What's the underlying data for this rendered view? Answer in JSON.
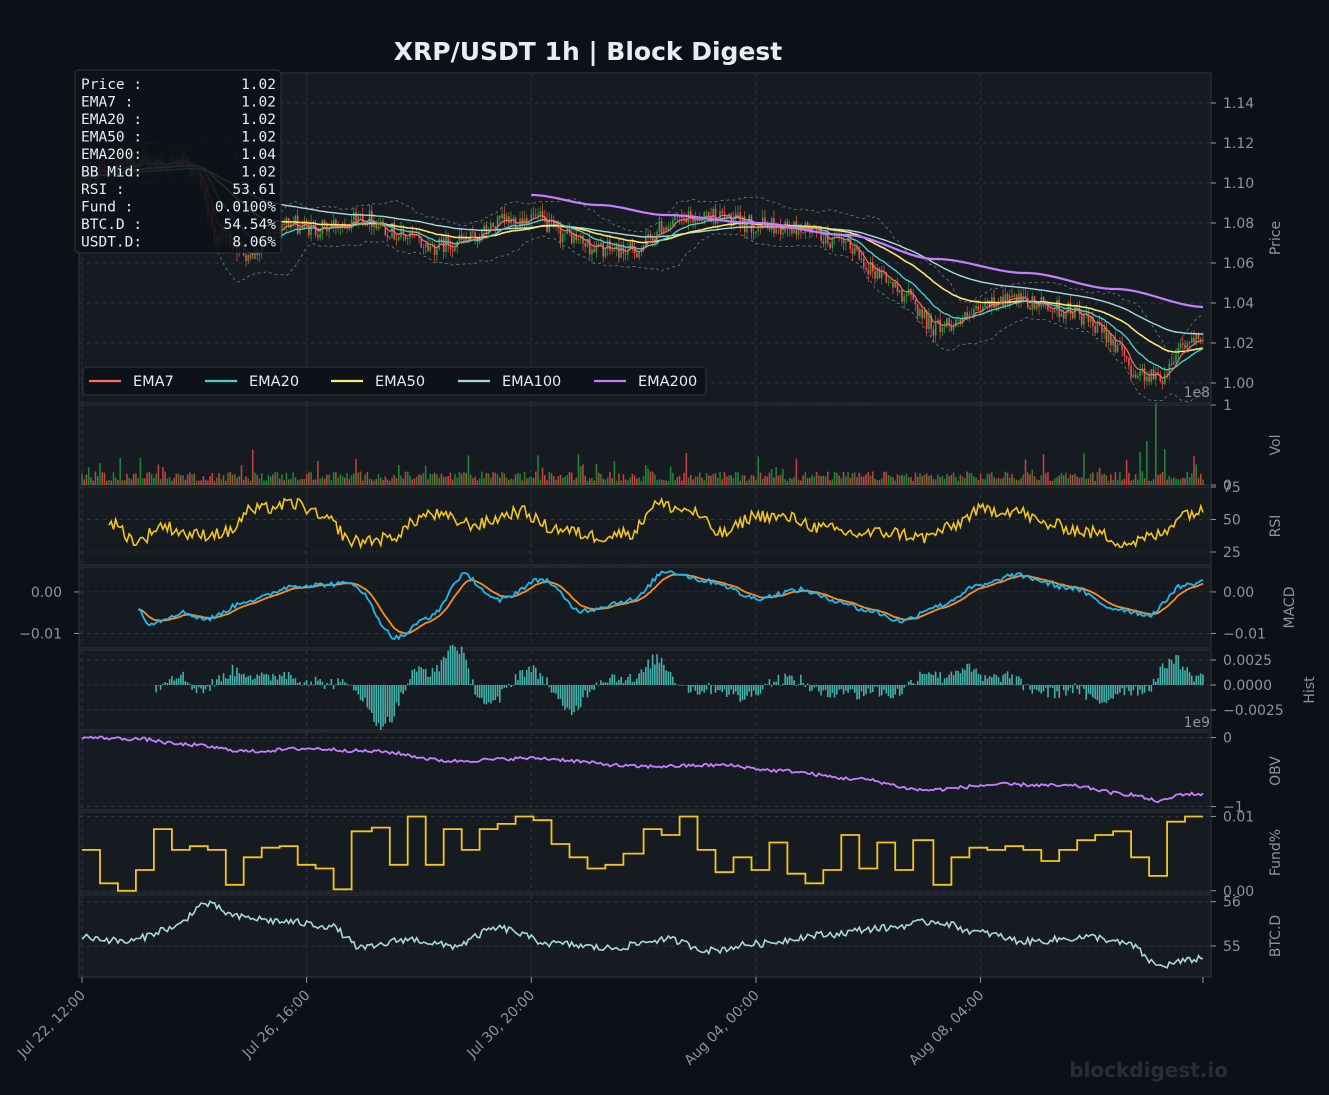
{
  "chart_data": {
    "type": "line",
    "title": "XRP/USDT  1h  |  Block Digest",
    "watermark": "blockdigest.io",
    "footer_brand": "blockdigest.io",
    "colors": {
      "background": "#0d1117",
      "panel": "#161b22",
      "grid": "#30363d",
      "text": "#e6edf3",
      "muted": "#8b949e",
      "up": "#26a641",
      "down": "#f85149",
      "ema7": "#ff6b6b",
      "ema20": "#4ecdc4",
      "ema50": "#ffe66d",
      "ema100": "#a8dadc",
      "ema200": "#c77dff",
      "rsi": "#f5c518",
      "macd": "#1eb8f0",
      "signal": "#ff8c1a",
      "hist": "#4ecdc4",
      "obv": "#c77dff",
      "funding": "#f5c518",
      "btcd": "#a8dadc"
    },
    "x_ticks": [
      "Jul 22, 12:00",
      "Jul 26, 16:00",
      "Jul 30, 20:00",
      "Aug 04, 00:00",
      "Aug 08, 04:00"
    ],
    "x_tick_positions": [
      0,
      100,
      200,
      300,
      400
    ],
    "n_bars": 500,
    "info_box": [
      {
        "label": "Price :",
        "value": "1.02"
      },
      {
        "label": "EMA7  :",
        "value": "1.02"
      },
      {
        "label": "EMA20 :",
        "value": "1.02"
      },
      {
        "label": "EMA50 :",
        "value": "1.02"
      },
      {
        "label": "EMA200:",
        "value": "1.04"
      },
      {
        "label": "BB Mid:",
        "value": "1.02"
      },
      {
        "label": "RSI   :",
        "value": "53.61"
      },
      {
        "label": "Fund  :",
        "value": "0.0100%"
      },
      {
        "label": "BTC.D :",
        "value": "54.54%"
      },
      {
        "label": "USDT.D:",
        "value": "8.06%"
      }
    ],
    "legend": [
      "EMA7",
      "EMA20",
      "EMA50",
      "EMA100",
      "EMA200"
    ],
    "panels": {
      "price": {
        "ylabel": "Price",
        "ylim": [
          0.99,
          1.155
        ],
        "ticks": [
          "1.00",
          "1.02",
          "1.04",
          "1.06",
          "1.08",
          "1.10",
          "1.12",
          "1.14"
        ],
        "anchors": [
          [
            0,
            1.1
          ],
          [
            15,
            1.11
          ],
          [
            45,
            1.11
          ],
          [
            50,
            1.104
          ],
          [
            60,
            1.074
          ],
          [
            75,
            1.065
          ],
          [
            90,
            1.08
          ],
          [
            105,
            1.077
          ],
          [
            125,
            1.083
          ],
          [
            145,
            1.073
          ],
          [
            155,
            1.068
          ],
          [
            170,
            1.071
          ],
          [
            190,
            1.081
          ],
          [
            200,
            1.083
          ],
          [
            215,
            1.074
          ],
          [
            230,
            1.067
          ],
          [
            245,
            1.066
          ],
          [
            262,
            1.08
          ],
          [
            280,
            1.084
          ],
          [
            300,
            1.079
          ],
          [
            320,
            1.077
          ],
          [
            340,
            1.069
          ],
          [
            355,
            1.055
          ],
          [
            365,
            1.045
          ],
          [
            380,
            1.028
          ],
          [
            390,
            1.031
          ],
          [
            410,
            1.042
          ],
          [
            425,
            1.039
          ],
          [
            440,
            1.036
          ],
          [
            455,
            1.025
          ],
          [
            470,
            1.005
          ],
          [
            480,
            1.003
          ],
          [
            490,
            1.02
          ],
          [
            500,
            1.02
          ]
        ],
        "ema200": [
          [
            200,
            1.094
          ],
          [
            230,
            1.089
          ],
          [
            260,
            1.084
          ],
          [
            300,
            1.08
          ],
          [
            340,
            1.074
          ],
          [
            380,
            1.062
          ],
          [
            420,
            1.055
          ],
          [
            460,
            1.047
          ],
          [
            500,
            1.038
          ]
        ]
      },
      "volume": {
        "ylabel": "Vol",
        "ylim": [
          0,
          1.0
        ],
        "ticks": [
          "0",
          "1"
        ],
        "offset": "1e8"
      },
      "rsi": {
        "ylabel": "RSI",
        "ylim": [
          15,
          75
        ],
        "ticks": [
          "25",
          "50",
          "75"
        ],
        "anchors": [
          [
            12,
            48
          ],
          [
            25,
            33
          ],
          [
            35,
            45
          ],
          [
            50,
            38
          ],
          [
            65,
            40
          ],
          [
            75,
            57
          ],
          [
            95,
            62
          ],
          [
            110,
            49
          ],
          [
            120,
            33
          ],
          [
            135,
            35
          ],
          [
            155,
            54
          ],
          [
            175,
            46
          ],
          [
            195,
            56
          ],
          [
            210,
            43
          ],
          [
            230,
            37
          ],
          [
            245,
            40
          ],
          [
            255,
            62
          ],
          [
            270,
            57
          ],
          [
            285,
            39
          ],
          [
            300,
            53
          ],
          [
            315,
            51
          ],
          [
            330,
            43
          ],
          [
            345,
            39
          ],
          [
            360,
            40
          ],
          [
            375,
            36
          ],
          [
            385,
            43
          ],
          [
            400,
            57
          ],
          [
            415,
            57
          ],
          [
            430,
            46
          ],
          [
            450,
            40
          ],
          [
            465,
            32
          ],
          [
            480,
            38
          ],
          [
            490,
            55
          ],
          [
            500,
            56
          ]
        ]
      },
      "macd": {
        "ylabel": "MACD",
        "ylim": [
          -0.0135,
          0.006
        ],
        "ticks_left": [
          "0.00",
          "−0.01"
        ],
        "ticks_right": [
          "0.00",
          "−0.01"
        ],
        "anchors": [
          [
            25,
            -0.004
          ],
          [
            30,
            -0.0075
          ],
          [
            45,
            -0.005
          ],
          [
            55,
            -0.0065
          ],
          [
            75,
            -0.002
          ],
          [
            95,
            0.0015
          ],
          [
            120,
            0.002
          ],
          [
            140,
            -0.011
          ],
          [
            155,
            -0.006
          ],
          [
            170,
            0.004
          ],
          [
            185,
            -0.002
          ],
          [
            205,
            0.003
          ],
          [
            222,
            -0.0045
          ],
          [
            245,
            -0.002
          ],
          [
            260,
            0.005
          ],
          [
            280,
            0.0025
          ],
          [
            300,
            -0.0015
          ],
          [
            320,
            0.0005
          ],
          [
            335,
            -0.002
          ],
          [
            350,
            -0.0045
          ],
          [
            365,
            -0.007
          ],
          [
            380,
            -0.0035
          ],
          [
            400,
            0.0015
          ],
          [
            415,
            0.004
          ],
          [
            440,
            0.001
          ],
          [
            460,
            -0.004
          ],
          [
            475,
            -0.0055
          ],
          [
            490,
            0.0015
          ],
          [
            500,
            0.0025
          ]
        ]
      },
      "hist": {
        "ylabel": "Hist",
        "ylim": [
          -0.0045,
          0.0035
        ],
        "ticks": [
          "0.0025",
          "0.0000",
          "−0.0025"
        ]
      },
      "obv": {
        "ylabel": "OBV",
        "ylim": [
          -1.05,
          0.08
        ],
        "ticks": [
          "0",
          "−1"
        ],
        "offset": "1e9",
        "anchors": [
          [
            0,
            0.0
          ],
          [
            25,
            -0.02
          ],
          [
            45,
            -0.1
          ],
          [
            75,
            -0.2
          ],
          [
            100,
            -0.16
          ],
          [
            130,
            -0.2
          ],
          [
            165,
            -0.34
          ],
          [
            200,
            -0.3
          ],
          [
            250,
            -0.42
          ],
          [
            285,
            -0.4
          ],
          [
            310,
            -0.48
          ],
          [
            345,
            -0.6
          ],
          [
            375,
            -0.76
          ],
          [
            410,
            -0.68
          ],
          [
            440,
            -0.7
          ],
          [
            465,
            -0.82
          ],
          [
            480,
            -0.92
          ],
          [
            490,
            -0.82
          ],
          [
            500,
            -0.82
          ]
        ]
      },
      "funding": {
        "ylabel": "Fund%",
        "ylim": [
          -0.0003,
          0.0106
        ],
        "ticks": [
          "0.01",
          "0.00"
        ]
      },
      "btcd": {
        "ylabel": "BTC.D",
        "ylim": [
          54.3,
          56.15
        ],
        "ticks": [
          "56",
          "55"
        ],
        "anchors": [
          [
            0,
            55.2
          ],
          [
            20,
            55.1
          ],
          [
            40,
            55.4
          ],
          [
            55,
            55.95
          ],
          [
            70,
            55.65
          ],
          [
            90,
            55.55
          ],
          [
            110,
            55.45
          ],
          [
            125,
            54.95
          ],
          [
            145,
            55.15
          ],
          [
            165,
            55.0
          ],
          [
            185,
            55.4
          ],
          [
            210,
            55.05
          ],
          [
            235,
            54.95
          ],
          [
            260,
            55.15
          ],
          [
            280,
            54.9
          ],
          [
            300,
            55.05
          ],
          [
            330,
            55.25
          ],
          [
            355,
            55.4
          ],
          [
            380,
            55.55
          ],
          [
            400,
            55.3
          ],
          [
            420,
            55.1
          ],
          [
            450,
            55.2
          ],
          [
            465,
            55.05
          ],
          [
            480,
            54.55
          ],
          [
            490,
            54.65
          ],
          [
            500,
            54.75
          ]
        ]
      }
    }
  }
}
